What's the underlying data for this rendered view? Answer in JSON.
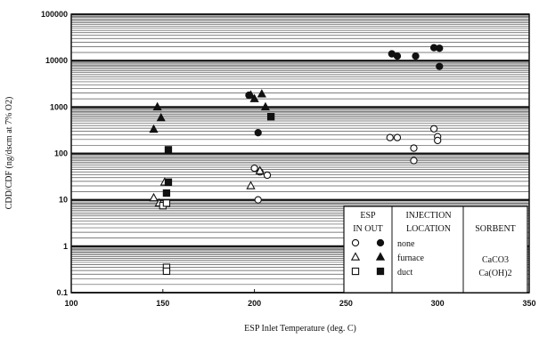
{
  "chart_data": {
    "type": "scatter",
    "xlabel": "ESP Inlet Temperature (deg. C)",
    "ylabel": "CDD/CDF (ng/dscm at 7% O2)",
    "xlim": [
      100,
      350
    ],
    "ylim": [
      0.1,
      100000
    ],
    "y_scale": "log",
    "x_ticks": [
      "100",
      "150",
      "200",
      "250",
      "300",
      "350"
    ],
    "y_ticks": [
      "0.1",
      "1",
      "10",
      "100",
      "1000",
      "10000",
      "100000"
    ],
    "grid": "horizontal-dense",
    "legend": {
      "columns": [
        "ESP",
        "IN OUT",
        "INJECTION",
        "LOCATION",
        "SORBENT"
      ],
      "rows": [
        {
          "location": "none",
          "sorbent": ""
        },
        {
          "location": "furnace",
          "sorbent": "CaCO3"
        },
        {
          "location": "duct",
          "sorbent": "Ca(OH)2"
        }
      ]
    },
    "series": [
      {
        "marker": "circle",
        "fill": "open",
        "points": [
          [
            200,
            48
          ],
          [
            203,
            40
          ],
          [
            207,
            34
          ],
          [
            202,
            10
          ],
          [
            274,
            220
          ],
          [
            278,
            220
          ],
          [
            287,
            130
          ],
          [
            287,
            70
          ],
          [
            298,
            340
          ],
          [
            300,
            230
          ],
          [
            300,
            190
          ]
        ]
      },
      {
        "marker": "circle",
        "fill": "filled",
        "points": [
          [
            197,
            1800
          ],
          [
            202,
            280
          ],
          [
            275,
            14000
          ],
          [
            278,
            12500
          ],
          [
            288,
            12500
          ],
          [
            298,
            19000
          ],
          [
            301,
            18500
          ],
          [
            301,
            7500
          ]
        ]
      },
      {
        "marker": "triangle",
        "fill": "open",
        "points": [
          [
            145,
            11
          ],
          [
            148,
            8.5
          ],
          [
            151,
            24
          ],
          [
            198,
            20
          ],
          [
            203,
            42
          ]
        ]
      },
      {
        "marker": "triangle",
        "fill": "filled",
        "points": [
          [
            145,
            330
          ],
          [
            147,
            1000
          ],
          [
            149,
            580
          ],
          [
            198,
            1800
          ],
          [
            200,
            1500
          ],
          [
            204,
            1900
          ],
          [
            206,
            1000
          ]
        ]
      },
      {
        "marker": "square",
        "fill": "open",
        "points": [
          [
            150,
            7.5
          ],
          [
            152,
            8.5
          ],
          [
            152,
            0.35
          ],
          [
            152,
            0.29
          ]
        ]
      },
      {
        "marker": "square",
        "fill": "filled",
        "points": [
          [
            153,
            120
          ],
          [
            153,
            24
          ],
          [
            152,
            14
          ],
          [
            209,
            620
          ]
        ]
      }
    ]
  }
}
